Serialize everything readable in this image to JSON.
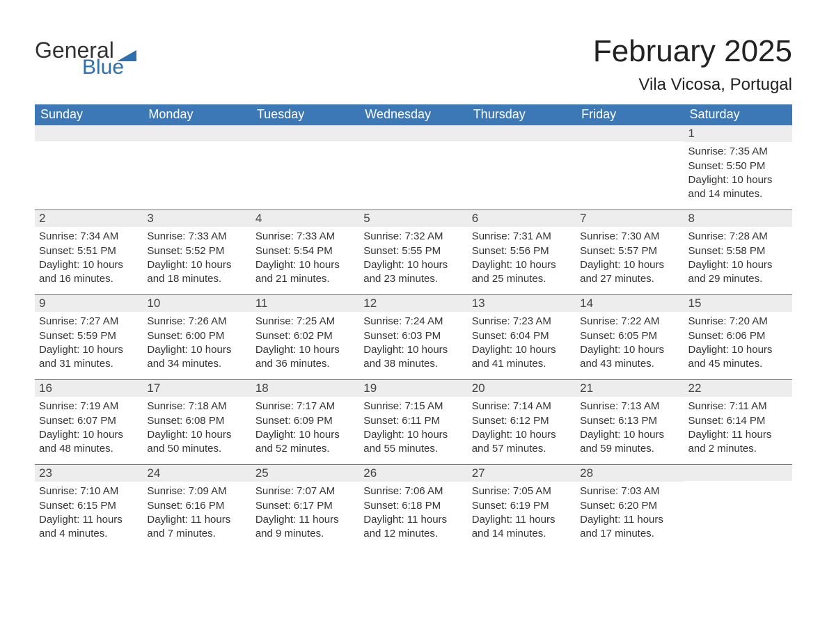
{
  "logo": {
    "word1": "General",
    "word2": "Blue",
    "tri_color": "#2f6fad"
  },
  "title": "February 2025",
  "location": "Vila Vicosa, Portugal",
  "colors": {
    "header_bg": "#3b78b5",
    "header_fg": "#ffffff",
    "daynum_bg": "#ededed",
    "rule": "#3b78b5",
    "text": "#333333"
  },
  "typography": {
    "title_fontsize": 44,
    "location_fontsize": 24,
    "header_fontsize": 18,
    "daynum_fontsize": 17,
    "body_fontsize": 15
  },
  "day_headers": [
    "Sunday",
    "Monday",
    "Tuesday",
    "Wednesday",
    "Thursday",
    "Friday",
    "Saturday"
  ],
  "weeks": [
    [
      null,
      null,
      null,
      null,
      null,
      null,
      {
        "n": "1",
        "sunrise": "7:35 AM",
        "sunset": "5:50 PM",
        "daylight": "10 hours and 14 minutes."
      }
    ],
    [
      {
        "n": "2",
        "sunrise": "7:34 AM",
        "sunset": "5:51 PM",
        "daylight": "10 hours and 16 minutes."
      },
      {
        "n": "3",
        "sunrise": "7:33 AM",
        "sunset": "5:52 PM",
        "daylight": "10 hours and 18 minutes."
      },
      {
        "n": "4",
        "sunrise": "7:33 AM",
        "sunset": "5:54 PM",
        "daylight": "10 hours and 21 minutes."
      },
      {
        "n": "5",
        "sunrise": "7:32 AM",
        "sunset": "5:55 PM",
        "daylight": "10 hours and 23 minutes."
      },
      {
        "n": "6",
        "sunrise": "7:31 AM",
        "sunset": "5:56 PM",
        "daylight": "10 hours and 25 minutes."
      },
      {
        "n": "7",
        "sunrise": "7:30 AM",
        "sunset": "5:57 PM",
        "daylight": "10 hours and 27 minutes."
      },
      {
        "n": "8",
        "sunrise": "7:28 AM",
        "sunset": "5:58 PM",
        "daylight": "10 hours and 29 minutes."
      }
    ],
    [
      {
        "n": "9",
        "sunrise": "7:27 AM",
        "sunset": "5:59 PM",
        "daylight": "10 hours and 31 minutes."
      },
      {
        "n": "10",
        "sunrise": "7:26 AM",
        "sunset": "6:00 PM",
        "daylight": "10 hours and 34 minutes."
      },
      {
        "n": "11",
        "sunrise": "7:25 AM",
        "sunset": "6:02 PM",
        "daylight": "10 hours and 36 minutes."
      },
      {
        "n": "12",
        "sunrise": "7:24 AM",
        "sunset": "6:03 PM",
        "daylight": "10 hours and 38 minutes."
      },
      {
        "n": "13",
        "sunrise": "7:23 AM",
        "sunset": "6:04 PM",
        "daylight": "10 hours and 41 minutes."
      },
      {
        "n": "14",
        "sunrise": "7:22 AM",
        "sunset": "6:05 PM",
        "daylight": "10 hours and 43 minutes."
      },
      {
        "n": "15",
        "sunrise": "7:20 AM",
        "sunset": "6:06 PM",
        "daylight": "10 hours and 45 minutes."
      }
    ],
    [
      {
        "n": "16",
        "sunrise": "7:19 AM",
        "sunset": "6:07 PM",
        "daylight": "10 hours and 48 minutes."
      },
      {
        "n": "17",
        "sunrise": "7:18 AM",
        "sunset": "6:08 PM",
        "daylight": "10 hours and 50 minutes."
      },
      {
        "n": "18",
        "sunrise": "7:17 AM",
        "sunset": "6:09 PM",
        "daylight": "10 hours and 52 minutes."
      },
      {
        "n": "19",
        "sunrise": "7:15 AM",
        "sunset": "6:11 PM",
        "daylight": "10 hours and 55 minutes."
      },
      {
        "n": "20",
        "sunrise": "7:14 AM",
        "sunset": "6:12 PM",
        "daylight": "10 hours and 57 minutes."
      },
      {
        "n": "21",
        "sunrise": "7:13 AM",
        "sunset": "6:13 PM",
        "daylight": "10 hours and 59 minutes."
      },
      {
        "n": "22",
        "sunrise": "7:11 AM",
        "sunset": "6:14 PM",
        "daylight": "11 hours and 2 minutes."
      }
    ],
    [
      {
        "n": "23",
        "sunrise": "7:10 AM",
        "sunset": "6:15 PM",
        "daylight": "11 hours and 4 minutes."
      },
      {
        "n": "24",
        "sunrise": "7:09 AM",
        "sunset": "6:16 PM",
        "daylight": "11 hours and 7 minutes."
      },
      {
        "n": "25",
        "sunrise": "7:07 AM",
        "sunset": "6:17 PM",
        "daylight": "11 hours and 9 minutes."
      },
      {
        "n": "26",
        "sunrise": "7:06 AM",
        "sunset": "6:18 PM",
        "daylight": "11 hours and 12 minutes."
      },
      {
        "n": "27",
        "sunrise": "7:05 AM",
        "sunset": "6:19 PM",
        "daylight": "11 hours and 14 minutes."
      },
      {
        "n": "28",
        "sunrise": "7:03 AM",
        "sunset": "6:20 PM",
        "daylight": "11 hours and 17 minutes."
      },
      null
    ]
  ],
  "labels": {
    "sunrise": "Sunrise: ",
    "sunset": "Sunset: ",
    "daylight": "Daylight: "
  }
}
